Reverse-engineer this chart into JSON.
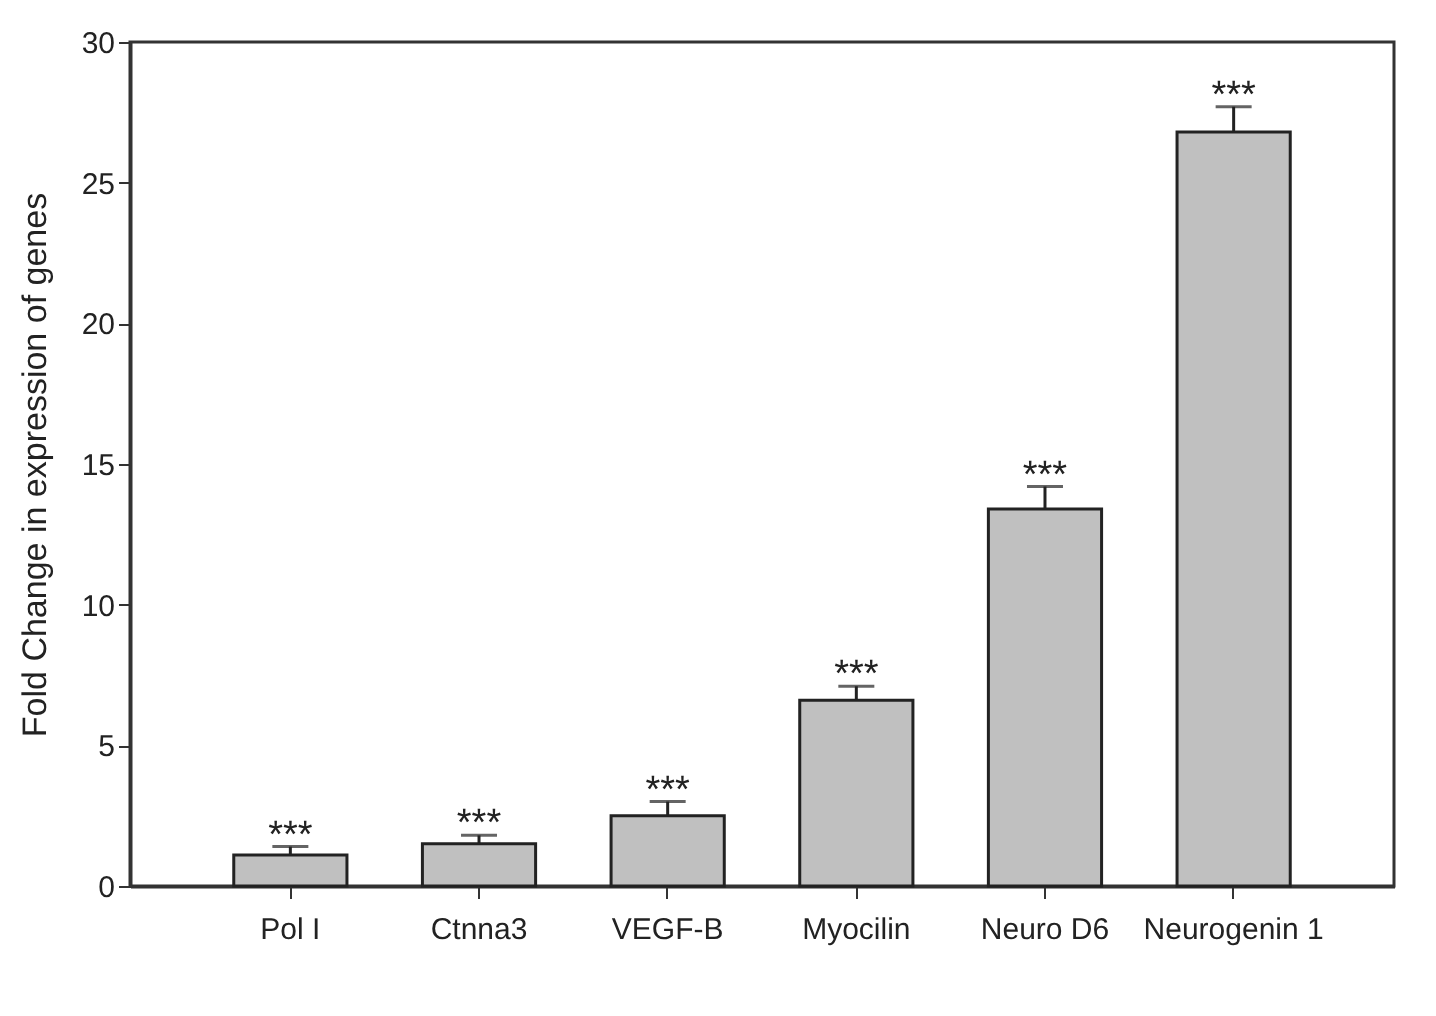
{
  "chart_data": {
    "type": "bar",
    "ylabel": "Fold Change in expression of genes",
    "categories": [
      "Pol I",
      "Ctnna3",
      "VEGF-B",
      "Myocilin",
      "Neuro D6",
      "Neurogenin 1"
    ],
    "values": [
      1.1,
      1.5,
      2.5,
      6.6,
      13.4,
      26.8
    ],
    "errors": [
      0.3,
      0.3,
      0.5,
      0.5,
      0.8,
      0.9
    ],
    "color": "#c0c0c0",
    "ylim": [
      0,
      30
    ],
    "yticks": [
      0,
      5,
      10,
      15,
      20,
      25,
      30
    ],
    "grid": false,
    "annotations": [
      {
        "text": "***",
        "x": "Pol I",
        "y": 1.4
      },
      {
        "text": "***",
        "x": "Ctnna3",
        "y": 1.8
      },
      {
        "text": "***",
        "x": "VEGF-B",
        "y": 3.0
      },
      {
        "text": "***",
        "x": "Myocilin",
        "y": 7.1
      },
      {
        "text": "***",
        "x": "Neuro D6",
        "y": 14.2
      },
      {
        "text": "***",
        "x": "Neurogenin 1",
        "y": 27.7
      }
    ]
  }
}
